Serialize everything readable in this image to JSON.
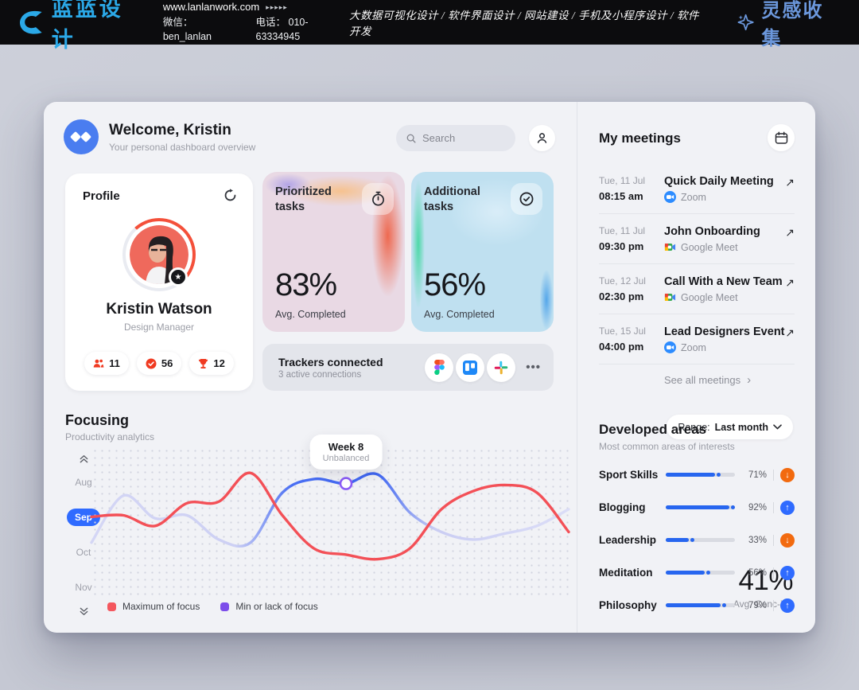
{
  "topbar": {
    "logo_text": "蓝蓝设计",
    "url": "www.lanlanwork.com",
    "url_arrows": "▸▸▸▸▸",
    "wechat": "微信： ben_lanlan",
    "phone": "电话： 010-63334945",
    "services": "大数据可视化设计 / 软件界面设计 / 网站建设 / 手机及小程序设计 / 软件开发",
    "collect_label": "灵感收集",
    "brand_color": "#2BA9E8",
    "collect_color": "#6B97DB"
  },
  "header": {
    "title": "Welcome, Kristin",
    "subtitle": "Your personal dashboard overview",
    "search_placeholder": "Search"
  },
  "profile": {
    "title": "Profile",
    "name": "Kristin Watson",
    "role": "Design Manager",
    "stats": [
      {
        "icon": "people-icon",
        "value": "11"
      },
      {
        "icon": "check-icon",
        "value": "56"
      },
      {
        "icon": "trophy-icon",
        "value": "12"
      }
    ]
  },
  "task_cards": [
    {
      "title": "Prioritized tasks",
      "icon": "stopwatch-icon",
      "value": "83%",
      "caption": "Avg. Completed"
    },
    {
      "title": "Additional tasks",
      "icon": "check-circle-icon",
      "value": "56%",
      "caption": "Avg. Completed"
    }
  ],
  "trackers": {
    "title": "Trackers connected",
    "subtitle": "3 active connections",
    "apps": [
      "figma",
      "trello",
      "slack"
    ],
    "more_label": "•••"
  },
  "focusing": {
    "title": "Focusing",
    "subtitle": "Productivity analytics",
    "range_label": "Range:",
    "range_value": "Last month",
    "months": [
      "Aug",
      "Sep",
      "Oct",
      "Nov"
    ],
    "active_month": "Sep",
    "legend": [
      {
        "label": "Maximum of focus",
        "color": "#F4575E"
      },
      {
        "label": "Min or lack of focus",
        "color": "#7C4DEA"
      }
    ],
    "avg_value": "41%",
    "avg_caption": "Avg. Conc-ion"
  },
  "chart_data": {
    "type": "line",
    "x_label": "weeks",
    "x": [
      1,
      2,
      3,
      4,
      5,
      6,
      7,
      8,
      9,
      10,
      11,
      12,
      13,
      14,
      15,
      16
    ],
    "y_range": [
      0,
      100
    ],
    "grid": "dotted",
    "series": [
      {
        "name": "Maximum of focus",
        "color": "#F35057",
        "values": [
          54,
          55,
          48,
          63,
          64,
          83,
          55,
          33,
          29,
          26,
          33,
          59,
          71,
          75,
          70,
          44
        ]
      },
      {
        "name": "Min or lack of focus",
        "color": "#7C4DEA",
        "values": [
          37,
          68,
          53,
          55,
          39,
          37,
          70,
          79,
          76,
          82,
          57,
          44,
          39,
          43,
          48,
          59
        ]
      }
    ],
    "marker": {
      "series": 1,
      "index": 8,
      "label": "Week 8",
      "sublabel": "Unbalanced"
    }
  },
  "meetings": {
    "title": "My meetings",
    "items": [
      {
        "date": "Tue, 11 Jul",
        "time": "08:15 am",
        "name": "Quick Daily Meeting",
        "platform": "Zoom",
        "platform_icon": "zoom-icon"
      },
      {
        "date": "Tue, 11 Jul",
        "time": "09:30 pm",
        "name": "John Onboarding",
        "platform": "Google Meet",
        "platform_icon": "meet-icon"
      },
      {
        "date": "Tue, 12 Jul",
        "time": "02:30 pm",
        "name": "Call With a New Team",
        "platform": "Google Meet",
        "platform_icon": "meet-icon"
      },
      {
        "date": "Tue, 15 Jul",
        "time": "04:00 pm",
        "name": "Lead Designers Event",
        "platform": "Zoom",
        "platform_icon": "zoom-icon"
      }
    ],
    "see_all": "See all meetings"
  },
  "developed_areas": {
    "title": "Developed areas",
    "subtitle": "Most common areas of interests",
    "items": [
      {
        "label": "Sport Skills",
        "percent": 71,
        "percent_label": "71%",
        "trend": "down"
      },
      {
        "label": "Blogging",
        "percent": 92,
        "percent_label": "92%",
        "trend": "up"
      },
      {
        "label": "Leadership",
        "percent": 33,
        "percent_label": "33%",
        "trend": "down"
      },
      {
        "label": "Meditation",
        "percent": 56,
        "percent_label": "56%",
        "trend": "up"
      },
      {
        "label": "Philosophy",
        "percent": 79,
        "percent_label": "79%",
        "trend": "up"
      }
    ]
  },
  "glyphs": {
    "arrow_ne": "↗",
    "chevron_right": "›",
    "star": "★"
  }
}
